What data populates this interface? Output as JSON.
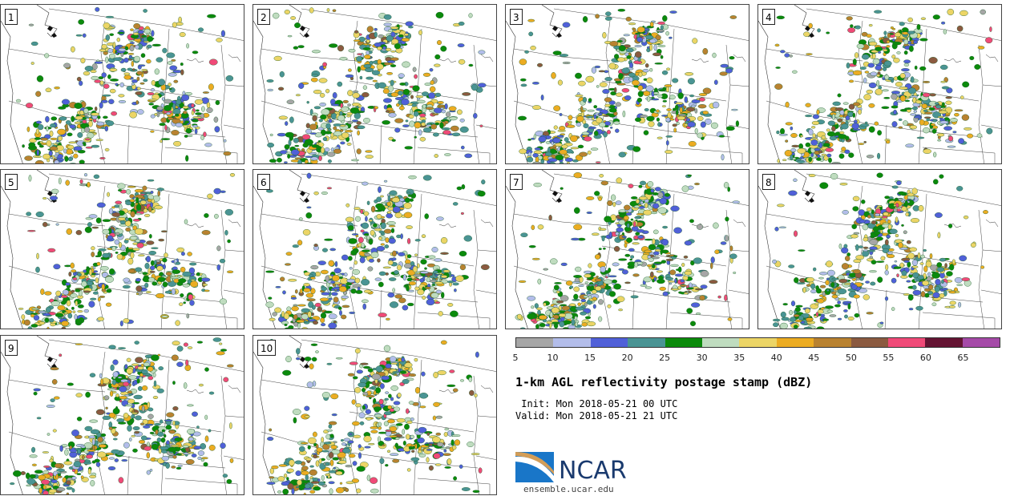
{
  "panels": [
    {
      "label": "1"
    },
    {
      "label": "2"
    },
    {
      "label": "3"
    },
    {
      "label": "4"
    },
    {
      "label": "5"
    },
    {
      "label": "6"
    },
    {
      "label": "7"
    },
    {
      "label": "8"
    },
    {
      "label": "9"
    },
    {
      "label": "10"
    }
  ],
  "colorbar": {
    "colors": [
      "#a6a6a6",
      "#b3bdea",
      "#5060d8",
      "#4a9494",
      "#0b8a0b",
      "#bfdcbf",
      "#ecd566",
      "#ecac22",
      "#b98230",
      "#8b5a40",
      "#f04a78",
      "#641433",
      "#a54aa8"
    ],
    "ticks": [
      "5",
      "10",
      "15",
      "20",
      "25",
      "30",
      "35",
      "40",
      "45",
      "50",
      "55",
      "60",
      "65"
    ]
  },
  "title": "1-km AGL reflectivity postage stamp (dBZ)",
  "init_text": " Init: Mon 2018-05-21 00 UTC",
  "valid_text": "Valid: Mon 2018-05-21 21 UTC",
  "logo": {
    "name": "NCAR",
    "site": "ensemble.ucar.edu"
  }
}
